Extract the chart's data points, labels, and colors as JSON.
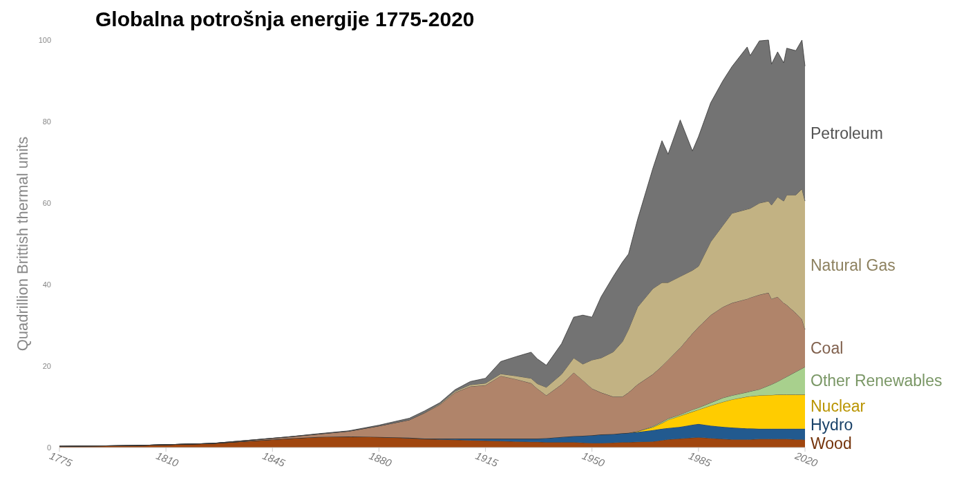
{
  "chart_data": {
    "type": "area",
    "stacked": true,
    "title": "Globalna potrošnja energije 1775-2020",
    "ylabel": "Quadrillion Brittish thermal units",
    "x": [
      1775,
      1800,
      1825,
      1850,
      1860,
      1870,
      1880,
      1890,
      1895,
      1900,
      1905,
      1910,
      1915,
      1920,
      1925,
      1930,
      1932,
      1935,
      1940,
      1944,
      1947,
      1950,
      1953,
      1957,
      1960,
      1962,
      1965,
      1970,
      1973,
      1975,
      1979,
      1983,
      1985,
      1989,
      1993,
      1996,
      2001,
      2002,
      2005,
      2008,
      2009,
      2011,
      2013,
      2014,
      2017,
      2019,
      2020
    ],
    "xlim": [
      1775,
      2020
    ],
    "xticks": [
      1775,
      1810,
      1845,
      1880,
      1915,
      1950,
      1985,
      2020
    ],
    "ylim": [
      0,
      100
    ],
    "yticks": [
      0,
      20,
      40,
      60,
      80,
      100
    ],
    "grid": false,
    "series": [
      {
        "name": "Wood",
        "color": "#a0460f",
        "values": [
          0.3,
          0.5,
          1.0,
          2.2,
          2.6,
          2.7,
          2.6,
          2.3,
          2.1,
          2.0,
          1.9,
          1.8,
          1.7,
          1.6,
          1.5,
          1.4,
          1.4,
          1.3,
          1.3,
          1.3,
          1.2,
          1.1,
          1.1,
          1.2,
          1.3,
          1.3,
          1.4,
          1.5,
          1.8,
          2.0,
          2.2,
          2.4,
          2.5,
          2.3,
          2.1,
          2.0,
          2.0,
          2.0,
          2.1,
          2.1,
          2.1,
          2.1,
          2.1,
          2.1,
          2.0,
          2.0,
          1.9
        ]
      },
      {
        "name": "Hydro",
        "color": "#225a8f",
        "values": [
          0,
          0,
          0,
          0,
          0,
          0,
          0,
          0.1,
          0.1,
          0.2,
          0.3,
          0.4,
          0.5,
          0.6,
          0.7,
          0.8,
          0.8,
          1.0,
          1.3,
          1.5,
          1.7,
          1.9,
          2.1,
          2.1,
          2.2,
          2.3,
          2.4,
          2.8,
          2.8,
          2.8,
          2.9,
          3.2,
          3.3,
          3.1,
          3.0,
          2.9,
          2.7,
          2.7,
          2.5,
          2.5,
          2.5,
          2.5,
          2.5,
          2.5,
          2.6,
          2.6,
          2.7
        ]
      },
      {
        "name": "Nuclear",
        "color": "#ffcc00",
        "values": [
          0,
          0,
          0,
          0,
          0,
          0,
          0,
          0,
          0,
          0,
          0,
          0,
          0,
          0,
          0,
          0,
          0,
          0,
          0,
          0,
          0,
          0,
          0,
          0,
          0,
          0,
          0.2,
          0.7,
          1.4,
          2.0,
          2.7,
          3.2,
          3.5,
          4.9,
          6.1,
          6.9,
          7.8,
          7.9,
          8.2,
          8.3,
          8.3,
          8.4,
          8.4,
          8.4,
          8.4,
          8.4,
          8.4
        ]
      },
      {
        "name": "Other Renewables",
        "color": "#a8d08d",
        "values": [
          0,
          0,
          0,
          0,
          0,
          0,
          0,
          0,
          0,
          0,
          0,
          0,
          0,
          0,
          0,
          0,
          0,
          0,
          0,
          0,
          0,
          0,
          0,
          0,
          0,
          0,
          0,
          0.2,
          0.3,
          0.3,
          0.3,
          0.5,
          0.5,
          0.7,
          1.0,
          1.0,
          1.1,
          1.2,
          1.5,
          2.3,
          2.6,
          3.2,
          4.0,
          4.4,
          5.6,
          6.4,
          6.8
        ]
      },
      {
        "name": "Coal",
        "color": "#b0846a",
        "values": [
          0,
          0,
          0,
          0.4,
          0.7,
          1.3,
          2.7,
          4.4,
          6.3,
          8.3,
          11.3,
          12.8,
          13.1,
          15.4,
          14.6,
          13.6,
          12.3,
          10.5,
          12.9,
          15.6,
          13.6,
          11.5,
          10.3,
          9.2,
          9.0,
          9.9,
          11.5,
          12.8,
          13.7,
          14.4,
          16.4,
          18.7,
          19.8,
          21.5,
          22.3,
          22.7,
          22.9,
          23.0,
          23.2,
          22.8,
          21.0,
          20.8,
          18.5,
          17.6,
          14.4,
          12.1,
          9.2
        ]
      },
      {
        "name": "Natural Gas",
        "color": "#c2b283",
        "values": [
          0,
          0,
          0,
          0,
          0,
          0,
          0,
          0,
          0.1,
          0.2,
          0.3,
          0.4,
          0.5,
          0.5,
          0.8,
          1.2,
          1.2,
          2.0,
          2.5,
          3.6,
          4.0,
          7.0,
          8.5,
          11.0,
          13.5,
          15.5,
          19.0,
          21.0,
          20.5,
          19.0,
          17.5,
          15.5,
          14.9,
          18.0,
          20.0,
          22.0,
          22.0,
          21.9,
          22.5,
          22.5,
          23.0,
          24.5,
          25.0,
          27.0,
          29.0,
          32.0,
          31.5
        ]
      },
      {
        "name": "Petroleum",
        "color": "#737373",
        "values": [
          0,
          0,
          0,
          0,
          0.1,
          0.1,
          0.2,
          0.4,
          0.4,
          0.3,
          0.4,
          0.8,
          1.2,
          3.0,
          4.7,
          6.4,
          6.1,
          5.4,
          7.5,
          10.0,
          12.0,
          10.5,
          15.0,
          18.5,
          19.5,
          18.5,
          21.5,
          29.5,
          34.8,
          31.5,
          38.4,
          29.3,
          31.8,
          34.1,
          35.5,
          36.0,
          39.8,
          37.5,
          39.8,
          39.5,
          34.6,
          35.6,
          33.9,
          36.0,
          35.4,
          36.5,
          33.1
        ]
      }
    ]
  }
}
